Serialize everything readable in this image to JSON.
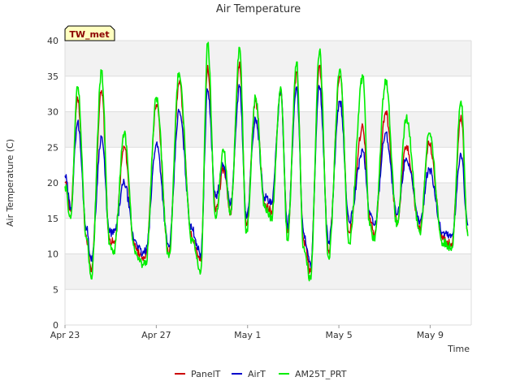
{
  "chart_data": {
    "type": "line",
    "title": "Air Temperature",
    "site_label": "TW_met",
    "xlabel": "Time",
    "ylabel": "Air Temperature (C)",
    "ylim": [
      0,
      40
    ],
    "yticks": [
      0,
      5,
      10,
      15,
      20,
      25,
      30,
      35,
      40
    ],
    "xlim": [
      0,
      17.8
    ],
    "xticks": [
      {
        "value": 0,
        "label": "Apr 23"
      },
      {
        "value": 4,
        "label": "Apr 27"
      },
      {
        "value": 8,
        "label": "May 1"
      },
      {
        "value": 12,
        "label": "May 5"
      },
      {
        "value": 16,
        "label": "May 9"
      }
    ],
    "grid": true,
    "legend_position": "bottom",
    "colors": {
      "PanelT": "#cc0000",
      "AirT": "#0000cc",
      "AM25T_PRT": "#00ee00",
      "band": "#f2f2f2",
      "grid": "#dddddd",
      "badge_fill": "#ffffc0"
    },
    "daily_minmax": {
      "x": [
        0.0,
        0.25,
        0.55,
        0.95,
        1.15,
        1.6,
        1.95,
        2.15,
        2.6,
        3.05,
        3.4,
        3.55,
        4.0,
        4.55,
        5.0,
        5.55,
        5.95,
        6.25,
        6.6,
        6.95,
        7.25,
        7.65,
        7.95,
        8.35,
        8.75,
        9.05,
        9.45,
        9.75,
        10.15,
        10.45,
        10.75,
        11.15,
        11.55,
        12.05,
        12.45,
        13.05,
        13.35,
        13.55,
        14.05,
        14.55,
        14.95,
        15.55,
        15.95,
        16.55,
        16.95,
        17.35,
        17.65
      ],
      "PanelT": [
        20.0,
        16.0,
        32.0,
        12.0,
        7.5,
        33.0,
        12.0,
        11.5,
        25.0,
        11.0,
        9.5,
        10.0,
        31.0,
        10.0,
        34.0,
        12.5,
        9.0,
        36.5,
        16.0,
        22.0,
        16.0,
        37.0,
        14.0,
        31.5,
        17.0,
        16.0,
        33.0,
        13.0,
        35.5,
        12.0,
        7.5,
        36.5,
        10.5,
        35.0,
        13.0,
        28.0,
        15.0,
        12.5,
        30.0,
        14.5,
        25.0,
        13.5,
        25.5,
        12.0,
        11.5,
        29.5,
        13.0
      ],
      "AirT": [
        21.0,
        16.5,
        28.5,
        13.5,
        9.0,
        26.5,
        13.0,
        13.0,
        20.0,
        12.0,
        10.0,
        10.5,
        25.5,
        11.0,
        30.0,
        13.5,
        10.0,
        33.0,
        18.0,
        22.5,
        17.0,
        33.5,
        15.0,
        29.0,
        18.0,
        17.0,
        32.5,
        14.0,
        33.5,
        13.0,
        8.5,
        33.5,
        11.5,
        31.5,
        14.5,
        24.5,
        16.0,
        14.0,
        27.0,
        15.5,
        23.5,
        14.5,
        22.0,
        13.0,
        12.5,
        24.0,
        14.0
      ],
      "AM25T_PRT": [
        19.5,
        15.0,
        33.5,
        12.0,
        6.5,
        35.5,
        11.5,
        10.5,
        27.0,
        10.5,
        8.5,
        9.0,
        32.0,
        9.5,
        35.5,
        12.0,
        7.5,
        39.5,
        15.0,
        24.5,
        15.5,
        39.0,
        13.0,
        32.0,
        16.5,
        15.0,
        33.5,
        12.0,
        37.0,
        11.0,
        6.5,
        38.5,
        9.5,
        36.0,
        11.5,
        35.0,
        14.0,
        12.0,
        34.5,
        14.0,
        29.0,
        13.0,
        27.0,
        11.5,
        11.0,
        31.5,
        12.5
      ]
    },
    "series": [
      {
        "name": "PanelT"
      },
      {
        "name": "AirT"
      },
      {
        "name": "AM25T_PRT"
      }
    ]
  }
}
